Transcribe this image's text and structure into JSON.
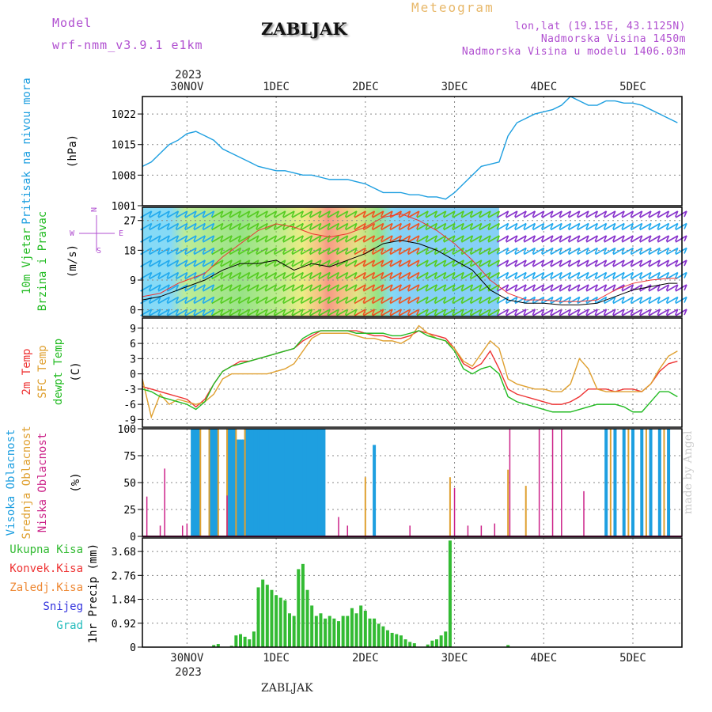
{
  "header": {
    "model_label": "Model",
    "model_name": "wrf-nmm_v3.9.1 e1km",
    "title": "Meteogram",
    "station": "ZABLJAK",
    "lonlat": "lon,lat (19.15E, 43.1125N)",
    "elevation": "Nadmorska Visina 1450m",
    "model_elevation": "Nadmorska Visina u modelu 1406.03m"
  },
  "footer": {
    "station": "ZABLJAK",
    "credit": "made by Angel"
  },
  "time_axis": {
    "top_year": "2023",
    "bottom_year": "2023",
    "labels": [
      "30NOV",
      "1DEC",
      "2DEC",
      "3DEC",
      "4DEC",
      "5DEC"
    ],
    "start_day_offset": -0.5,
    "end_day_offset": 5.55
  },
  "colors": {
    "pressure": "#1e9fe0",
    "temp2m": "#ee3333",
    "sfc_temp": "#dfa030",
    "dewpt": "#22bb22",
    "high_cloud": "#1e9fe0",
    "mid_cloud": "#dfa030",
    "low_cloud": "#cc2288",
    "precip": "#33bb33",
    "title_purple": "#b04fd0"
  },
  "chart_data": [
    {
      "type": "line",
      "panel": "pressure",
      "ylabel_main": "Pritisak na nivou mora",
      "ylabel_unit": "(hPa)",
      "yticks": [
        1001,
        1008,
        1015,
        1022
      ],
      "ylim": [
        1001,
        1026
      ],
      "grid": true,
      "series": [
        {
          "name": "",
          "x": [
            -0.5,
            -0.4,
            -0.3,
            -0.2,
            -0.1,
            0.0,
            0.1,
            0.2,
            0.3,
            0.4,
            0.5,
            0.6,
            0.7,
            0.8,
            0.9,
            1.0,
            1.1,
            1.2,
            1.3,
            1.4,
            1.5,
            1.6,
            1.7,
            1.8,
            1.9,
            2.0,
            2.1,
            2.2,
            2.3,
            2.4,
            2.5,
            2.6,
            2.7,
            2.8,
            2.9,
            3.0,
            3.1,
            3.2,
            3.3,
            3.4,
            3.5,
            3.6,
            3.7,
            3.8,
            3.9,
            4.0,
            4.1,
            4.2,
            4.3,
            4.4,
            4.5,
            4.6,
            4.7,
            4.8,
            4.9,
            5.0,
            5.1,
            5.2,
            5.3,
            5.4,
            5.5
          ],
          "values": [
            1010,
            1011,
            1013,
            1015,
            1016,
            1017.5,
            1018,
            1017,
            1016,
            1014,
            1013,
            1012,
            1011,
            1010,
            1009.5,
            1009,
            1009,
            1008.5,
            1008,
            1008,
            1007.5,
            1007,
            1007,
            1007,
            1006.5,
            1006,
            1005,
            1004,
            1004,
            1004,
            1003.5,
            1003.5,
            1003,
            1003,
            1002.5,
            1004,
            1006,
            1008,
            1010,
            1010.5,
            1011,
            1017,
            1020,
            1021,
            1022,
            1022.5,
            1023,
            1024,
            1026,
            1025,
            1024,
            1024,
            1025,
            1025,
            1024.5,
            1024.5,
            1024,
            1023,
            1022,
            1021,
            1020
          ]
        }
      ]
    },
    {
      "type": "line",
      "panel": "wind",
      "ylabel_main": "10m Vjetar",
      "ylabel_main2": "Brzina i Pravac",
      "ylabel_unit": "(m/s)",
      "compass": {
        "n": "N",
        "s": "S",
        "e": "E",
        "w": "W"
      },
      "yticks": [
        0,
        9,
        18,
        27
      ],
      "ylim": [
        -2,
        31
      ],
      "grid": true,
      "series": [
        {
          "name": "",
          "x": [
            -0.5,
            -0.3,
            -0.1,
            0.0,
            0.2,
            0.4,
            0.6,
            0.8,
            1.0,
            1.2,
            1.4,
            1.6,
            1.8,
            2.0,
            2.2,
            2.4,
            2.6,
            2.8,
            3.0,
            3.2,
            3.4,
            3.6,
            3.8,
            4.0,
            4.2,
            4.4,
            4.6,
            4.8,
            5.0,
            5.2,
            5.4,
            5.5
          ],
          "values": [
            3,
            4,
            6,
            7,
            9,
            12,
            14,
            14,
            15,
            12,
            14,
            13,
            15,
            17,
            20,
            21,
            20,
            18,
            15,
            12,
            6,
            3,
            2,
            2,
            1.5,
            1.5,
            2,
            4,
            6,
            7,
            8,
            8
          ]
        },
        {
          "name": "",
          "x": [
            -0.5,
            -0.3,
            -0.1,
            0.0,
            0.2,
            0.4,
            0.6,
            0.8,
            1.0,
            1.2,
            1.4,
            1.6,
            1.8,
            2.0,
            2.2,
            2.4,
            2.6,
            2.8,
            3.0,
            3.2,
            3.4,
            3.6,
            3.8,
            4.0,
            4.2,
            4.4,
            4.6,
            4.8,
            5.0,
            5.2,
            5.4,
            5.5
          ],
          "values": [
            4,
            5,
            8,
            9,
            11,
            16,
            20,
            24,
            26,
            25,
            23,
            22,
            23,
            25,
            28,
            29,
            27,
            24,
            20,
            15,
            9,
            5,
            3,
            3,
            2.5,
            2.5,
            3,
            6,
            8,
            9,
            9.5,
            9.5
          ]
        }
      ],
      "barb_speeds": [
        4,
        5,
        7,
        8,
        10,
        14,
        17,
        19,
        21,
        19,
        19,
        18,
        19,
        22,
        25,
        26,
        25,
        22,
        18,
        14,
        8,
        4,
        3,
        3,
        2,
        2,
        3,
        5,
        7,
        8,
        9,
        9
      ]
    },
    {
      "type": "line",
      "panel": "temperature",
      "ylabel_main": "2m Temp",
      "ylabel_main2": "SFC Temp",
      "ylabel_main3": "dewpt Temp",
      "ylabel_unit": "(C)",
      "yticks": [
        -9,
        -6,
        -3,
        0,
        3,
        6,
        9
      ],
      "ylim": [
        -10.5,
        11
      ],
      "grid": true,
      "series": [
        {
          "name": "2m Temp",
          "x": [
            -0.5,
            -0.4,
            -0.3,
            -0.2,
            -0.1,
            0.0,
            0.1,
            0.2,
            0.3,
            0.4,
            0.5,
            0.6,
            0.7,
            0.8,
            0.9,
            1.0,
            1.1,
            1.2,
            1.3,
            1.4,
            1.5,
            1.6,
            1.7,
            1.8,
            1.9,
            2.0,
            2.1,
            2.2,
            2.3,
            2.4,
            2.5,
            2.6,
            2.7,
            2.8,
            2.9,
            3.0,
            3.1,
            3.2,
            3.3,
            3.4,
            3.5,
            3.6,
            3.7,
            3.8,
            3.9,
            4.0,
            4.1,
            4.2,
            4.3,
            4.4,
            4.5,
            4.6,
            4.7,
            4.8,
            4.9,
            5.0,
            5.1,
            5.2,
            5.3,
            5.4,
            5.5
          ],
          "values": [
            -2.5,
            -3,
            -3.5,
            -4,
            -4.5,
            -5,
            -6.5,
            -5,
            -2,
            0.5,
            1.5,
            2.5,
            2.5,
            3,
            3.5,
            4,
            4.5,
            5,
            6.5,
            7.5,
            8.5,
            8.5,
            8.5,
            8.5,
            8.5,
            8,
            7.5,
            7.5,
            7,
            7,
            7.5,
            8.5,
            8,
            7.5,
            7,
            5,
            2,
            1,
            2,
            4.5,
            1,
            -3,
            -4,
            -4.5,
            -5,
            -5.5,
            -6,
            -6,
            -5.5,
            -4.5,
            -3,
            -3,
            -3,
            -3.5,
            -3,
            -3,
            -3.5,
            -2,
            0.5,
            2,
            2.5
          ]
        },
        {
          "name": "SFC Temp",
          "x": [
            -0.5,
            -0.4,
            -0.3,
            -0.2,
            -0.1,
            0.0,
            0.1,
            0.2,
            0.3,
            0.4,
            0.5,
            0.6,
            0.7,
            0.8,
            0.9,
            1.0,
            1.1,
            1.2,
            1.3,
            1.4,
            1.5,
            1.6,
            1.7,
            1.8,
            1.9,
            2.0,
            2.1,
            2.2,
            2.3,
            2.4,
            2.5,
            2.6,
            2.7,
            2.8,
            2.9,
            3.0,
            3.1,
            3.2,
            3.3,
            3.4,
            3.5,
            3.6,
            3.7,
            3.8,
            3.9,
            4.0,
            4.1,
            4.2,
            4.3,
            4.4,
            4.5,
            4.6,
            4.7,
            4.8,
            4.9,
            5.0,
            5.1,
            5.2,
            5.3,
            5.4,
            5.5
          ],
          "values": [
            -1,
            -8.5,
            -4,
            -6,
            -5,
            -5.5,
            -6,
            -5.5,
            -4,
            -1,
            0,
            0,
            0,
            0,
            0,
            0.5,
            1,
            2,
            4.5,
            7,
            8,
            8,
            8,
            8,
            7.5,
            7,
            7,
            6.5,
            6.5,
            6,
            7,
            9.5,
            8,
            7,
            6.5,
            5,
            2.5,
            1.5,
            4,
            6.5,
            5,
            -1,
            -2,
            -2.5,
            -3,
            -3,
            -3.5,
            -3.5,
            -2,
            3,
            1,
            -3,
            -3.5,
            -3.5,
            -3.5,
            -3.5,
            -3.5,
            -2,
            1,
            3.5,
            4.5
          ]
        },
        {
          "name": "dewpt Temp",
          "x": [
            -0.5,
            -0.4,
            -0.3,
            -0.2,
            -0.1,
            0.0,
            0.1,
            0.2,
            0.3,
            0.4,
            0.5,
            0.6,
            0.7,
            0.8,
            0.9,
            1.0,
            1.1,
            1.2,
            1.3,
            1.4,
            1.5,
            1.6,
            1.7,
            1.8,
            1.9,
            2.0,
            2.1,
            2.2,
            2.3,
            2.4,
            2.5,
            2.6,
            2.7,
            2.8,
            2.9,
            3.0,
            3.1,
            3.2,
            3.3,
            3.4,
            3.5,
            3.6,
            3.7,
            3.8,
            3.9,
            4.0,
            4.1,
            4.2,
            4.3,
            4.4,
            4.5,
            4.6,
            4.7,
            4.8,
            4.9,
            5.0,
            5.1,
            5.2,
            5.3,
            5.4,
            5.5
          ],
          "values": [
            -3,
            -3.5,
            -4.5,
            -5,
            -5.5,
            -6,
            -7,
            -5.5,
            -2,
            0.5,
            1.5,
            2,
            2.5,
            3,
            3.5,
            4,
            4.5,
            5,
            7,
            8,
            8.5,
            8.5,
            8.5,
            8.5,
            8,
            8,
            8,
            8,
            7.5,
            7.5,
            8,
            8.5,
            7.5,
            7,
            6.5,
            4.5,
            1,
            0,
            1,
            1.5,
            0,
            -4.5,
            -5.5,
            -6,
            -6.5,
            -7,
            -7.5,
            -7.5,
            -7.5,
            -7,
            -6.5,
            -6,
            -6,
            -6,
            -6.5,
            -7.5,
            -7.5,
            -5.5,
            -3.5,
            -3.5,
            -4.5
          ]
        }
      ]
    },
    {
      "type": "bar",
      "panel": "cloud",
      "ylabel_main": "Visoka Oblacnost",
      "ylabel_main2": "Srednja Oblacnost",
      "ylabel_main3": "Niska Oblacnost",
      "ylabel_unit": "(%)",
      "yticks": [
        0,
        25,
        50,
        75,
        100
      ],
      "ylim": [
        0,
        100
      ],
      "grid": true,
      "series": [
        {
          "name": "Visoka Oblacnost",
          "x": [
            0.1,
            0.3,
            0.5,
            0.6,
            0.7,
            0.8,
            0.9,
            1.0,
            1.1,
            1.2,
            1.3,
            1.4,
            1.5,
            2.1,
            4.7,
            4.8,
            4.9,
            5.0,
            5.1,
            5.2,
            5.3,
            5.4
          ],
          "values": [
            100,
            100,
            100,
            90,
            100,
            100,
            100,
            100,
            100,
            100,
            100,
            100,
            100,
            85,
            100,
            100,
            100,
            100,
            100,
            100,
            100,
            100
          ]
        },
        {
          "name": "Srednja Oblacnost",
          "x": [
            0.15,
            0.25,
            0.35,
            0.45,
            0.55,
            0.65,
            2.0,
            2.95,
            3.6,
            3.8,
            4.75,
            4.95,
            5.15,
            5.35
          ],
          "values": [
            100,
            100,
            100,
            100,
            100,
            100,
            55,
            55,
            62,
            47,
            100,
            100,
            100,
            100
          ]
        },
        {
          "name": "Niska Oblacnost",
          "x": [
            -0.45,
            -0.3,
            -0.25,
            -0.05,
            0.0,
            0.45,
            1.7,
            1.8,
            2.5,
            3.0,
            3.15,
            3.3,
            3.45,
            3.62,
            3.95,
            4.1,
            4.2,
            4.45
          ],
          "values": [
            37,
            10,
            63,
            10,
            12,
            38,
            18,
            10,
            10,
            45,
            10,
            10,
            12,
            100,
            100,
            100,
            100,
            42
          ]
        }
      ]
    },
    {
      "type": "bar",
      "panel": "precip",
      "legend": [
        "Ukupna Kisa",
        "Konvek.Kisa",
        "Zaledj.Kisa",
        "Snijeg",
        "Grad"
      ],
      "ylabel_unit": "1hr Precip (mm)",
      "yticks": [
        0,
        0.92,
        1.84,
        2.76,
        3.68
      ],
      "ylim": [
        0,
        4.2
      ],
      "grid": true,
      "series": [
        {
          "name": "Ukupna Kisa",
          "x": [
            0.3,
            0.35,
            0.5,
            0.55,
            0.6,
            0.65,
            0.7,
            0.75,
            0.8,
            0.85,
            0.9,
            0.95,
            1.0,
            1.05,
            1.1,
            1.15,
            1.2,
            1.25,
            1.3,
            1.35,
            1.4,
            1.45,
            1.5,
            1.55,
            1.6,
            1.65,
            1.7,
            1.75,
            1.8,
            1.85,
            1.9,
            1.95,
            2.0,
            2.05,
            2.1,
            2.15,
            2.2,
            2.25,
            2.3,
            2.35,
            2.4,
            2.45,
            2.5,
            2.55,
            2.7,
            2.75,
            2.8,
            2.85,
            2.9,
            2.95,
            3.6
          ],
          "values": [
            0.08,
            0.12,
            0.05,
            0.45,
            0.5,
            0.4,
            0.3,
            0.6,
            2.3,
            2.6,
            2.4,
            2.2,
            2.0,
            1.9,
            1.8,
            1.3,
            1.2,
            3.0,
            3.2,
            2.2,
            1.6,
            1.2,
            1.3,
            1.1,
            1.2,
            1.1,
            1.0,
            1.2,
            1.2,
            1.5,
            1.3,
            1.6,
            1.4,
            1.1,
            1.1,
            0.9,
            0.8,
            0.65,
            0.55,
            0.5,
            0.45,
            0.3,
            0.2,
            0.15,
            0.1,
            0.25,
            0.3,
            0.45,
            0.6,
            4.1,
            0.08
          ]
        },
        {
          "name": "",
          "x": [
            2.9,
            3.0
          ],
          "values": [
            4.1,
            1.7
          ]
        }
      ]
    }
  ]
}
